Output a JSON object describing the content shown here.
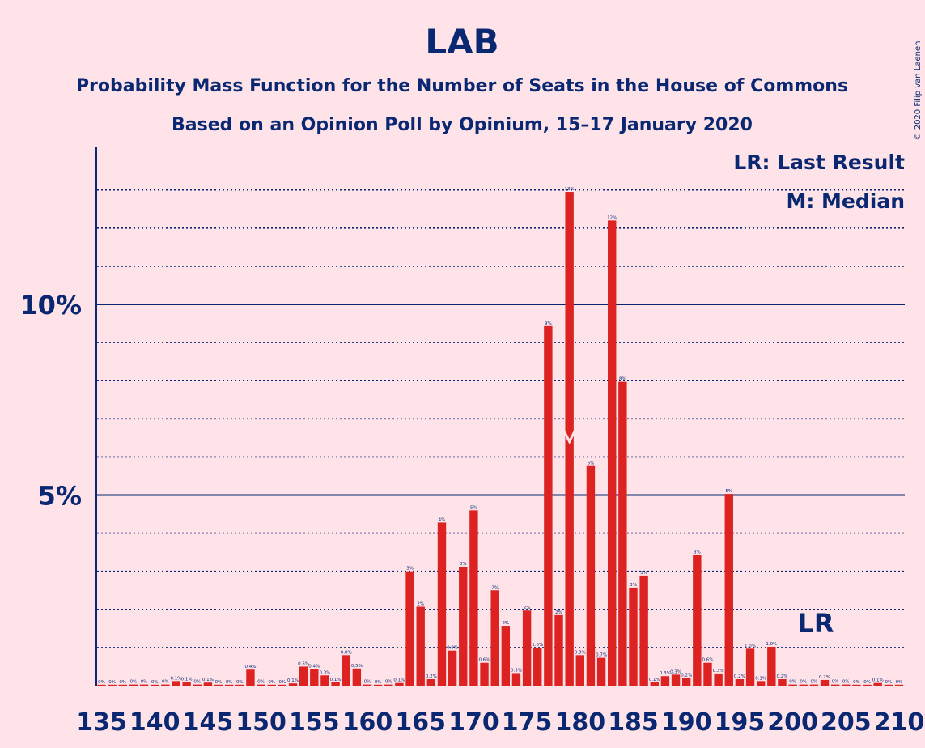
{
  "title": "LAB",
  "subtitle_1": "Probability Mass Function for the Number of Seats in the House of Commons",
  "subtitle_2": "Based on an Opinion Poll by Opinium, 15–17 January 2020",
  "copyright": "© 2020 Filip van Laenen",
  "legend": {
    "last_result": "LR: Last Result",
    "median": "M: Median"
  },
  "lr_marker": "LR",
  "colors": {
    "background": "#ffe3e8",
    "bar": "#dd2222",
    "text": "#0a2872"
  },
  "chart_data": {
    "type": "bar",
    "xlabel": "",
    "ylabel": "",
    "ylim": [
      0,
      14
    ],
    "x_ticks": [
      135,
      140,
      145,
      150,
      155,
      160,
      165,
      170,
      175,
      180,
      185,
      190,
      195,
      200,
      205,
      210
    ],
    "y_ticks": [
      {
        "value": 5,
        "label": "5%"
      },
      {
        "value": 10,
        "label": "10%"
      }
    ],
    "last_result": 203,
    "median": 179,
    "bars": [
      {
        "seats": 135,
        "value": 0.02,
        "label": "0%"
      },
      {
        "seats": 136,
        "value": 0.02,
        "label": "0%"
      },
      {
        "seats": 137,
        "value": 0.02,
        "label": "0%"
      },
      {
        "seats": 138,
        "value": 0.03,
        "label": "0%"
      },
      {
        "seats": 139,
        "value": 0.03,
        "label": "0%"
      },
      {
        "seats": 140,
        "value": 0.02,
        "label": "0%"
      },
      {
        "seats": 141,
        "value": 0.03,
        "label": "0%"
      },
      {
        "seats": 142,
        "value": 0.12,
        "label": "0.1%"
      },
      {
        "seats": 143,
        "value": 0.1,
        "label": "0.1%"
      },
      {
        "seats": 144,
        "value": 0.03,
        "label": "0%"
      },
      {
        "seats": 145,
        "value": 0.08,
        "label": "0.1%"
      },
      {
        "seats": 146,
        "value": 0.02,
        "label": "0%"
      },
      {
        "seats": 147,
        "value": 0.02,
        "label": "0%"
      },
      {
        "seats": 148,
        "value": 0.02,
        "label": "0%"
      },
      {
        "seats": 149,
        "value": 0.42,
        "label": "0.4%"
      },
      {
        "seats": 150,
        "value": 0.03,
        "label": "0%"
      },
      {
        "seats": 151,
        "value": 0.02,
        "label": "0%"
      },
      {
        "seats": 152,
        "value": 0.02,
        "label": "0%"
      },
      {
        "seats": 153,
        "value": 0.06,
        "label": "0.1%"
      },
      {
        "seats": 154,
        "value": 0.5,
        "label": "0.5%"
      },
      {
        "seats": 155,
        "value": 0.43,
        "label": "0.4%"
      },
      {
        "seats": 156,
        "value": 0.27,
        "label": "0.3%"
      },
      {
        "seats": 157,
        "value": 0.09,
        "label": "0.1%"
      },
      {
        "seats": 158,
        "value": 0.8,
        "label": "0.8%"
      },
      {
        "seats": 159,
        "value": 0.45,
        "label": "0.5%"
      },
      {
        "seats": 160,
        "value": 0.03,
        "label": "0%"
      },
      {
        "seats": 161,
        "value": 0.02,
        "label": "0%"
      },
      {
        "seats": 162,
        "value": 0.03,
        "label": "0%"
      },
      {
        "seats": 163,
        "value": 0.07,
        "label": "0.1%"
      },
      {
        "seats": 164,
        "value": 3.0,
        "label": "3%"
      },
      {
        "seats": 165,
        "value": 2.07,
        "label": "2%"
      },
      {
        "seats": 166,
        "value": 0.17,
        "label": "0.2%"
      },
      {
        "seats": 167,
        "value": 4.28,
        "label": "4%"
      },
      {
        "seats": 168,
        "value": 0.92,
        "label": "0.9%"
      },
      {
        "seats": 169,
        "value": 3.12,
        "label": "3%"
      },
      {
        "seats": 170,
        "value": 4.6,
        "label": "5%"
      },
      {
        "seats": 171,
        "value": 0.6,
        "label": "0.6%"
      },
      {
        "seats": 172,
        "value": 2.5,
        "label": "2%"
      },
      {
        "seats": 173,
        "value": 1.57,
        "label": "2%"
      },
      {
        "seats": 174,
        "value": 0.33,
        "label": "0.3%"
      },
      {
        "seats": 175,
        "value": 1.97,
        "label": "2%"
      },
      {
        "seats": 176,
        "value": 1.0,
        "label": "1.0%"
      },
      {
        "seats": 177,
        "value": 9.43,
        "label": "9%"
      },
      {
        "seats": 178,
        "value": 1.85,
        "label": "2%"
      },
      {
        "seats": 179,
        "value": 12.95,
        "label": "13%"
      },
      {
        "seats": 180,
        "value": 0.8,
        "label": "0.8%"
      },
      {
        "seats": 181,
        "value": 5.76,
        "label": "6%"
      },
      {
        "seats": 182,
        "value": 0.73,
        "label": "0.7%"
      },
      {
        "seats": 183,
        "value": 12.2,
        "label": "12%"
      },
      {
        "seats": 184,
        "value": 7.97,
        "label": "8%"
      },
      {
        "seats": 185,
        "value": 2.57,
        "label": "3%"
      },
      {
        "seats": 186,
        "value": 2.89,
        "label": "3%"
      },
      {
        "seats": 187,
        "value": 0.09,
        "label": "0.1%"
      },
      {
        "seats": 188,
        "value": 0.25,
        "label": "0.3%"
      },
      {
        "seats": 189,
        "value": 0.29,
        "label": "0.3%"
      },
      {
        "seats": 190,
        "value": 0.2,
        "label": "0.2%"
      },
      {
        "seats": 191,
        "value": 3.43,
        "label": "3%"
      },
      {
        "seats": 192,
        "value": 0.6,
        "label": "0.6%"
      },
      {
        "seats": 193,
        "value": 0.32,
        "label": "0.3%"
      },
      {
        "seats": 194,
        "value": 5.03,
        "label": "5%"
      },
      {
        "seats": 195,
        "value": 0.17,
        "label": "0.2%"
      },
      {
        "seats": 196,
        "value": 0.97,
        "label": "1.0%"
      },
      {
        "seats": 197,
        "value": 0.12,
        "label": "0.1%"
      },
      {
        "seats": 198,
        "value": 1.02,
        "label": "1.0%"
      },
      {
        "seats": 199,
        "value": 0.17,
        "label": "0.2%"
      },
      {
        "seats": 200,
        "value": 0.03,
        "label": "0%"
      },
      {
        "seats": 201,
        "value": 0.03,
        "label": "0%"
      },
      {
        "seats": 202,
        "value": 0.03,
        "label": "0%"
      },
      {
        "seats": 203,
        "value": 0.15,
        "label": "0.2%"
      },
      {
        "seats": 204,
        "value": 0.03,
        "label": "0%"
      },
      {
        "seats": 205,
        "value": 0.03,
        "label": "0%"
      },
      {
        "seats": 206,
        "value": 0.02,
        "label": "0%"
      },
      {
        "seats": 207,
        "value": 0.02,
        "label": "0%"
      },
      {
        "seats": 208,
        "value": 0.07,
        "label": "0.1%"
      },
      {
        "seats": 209,
        "value": 0.02,
        "label": "0%"
      },
      {
        "seats": 210,
        "value": 0.02,
        "label": "0%"
      }
    ]
  }
}
